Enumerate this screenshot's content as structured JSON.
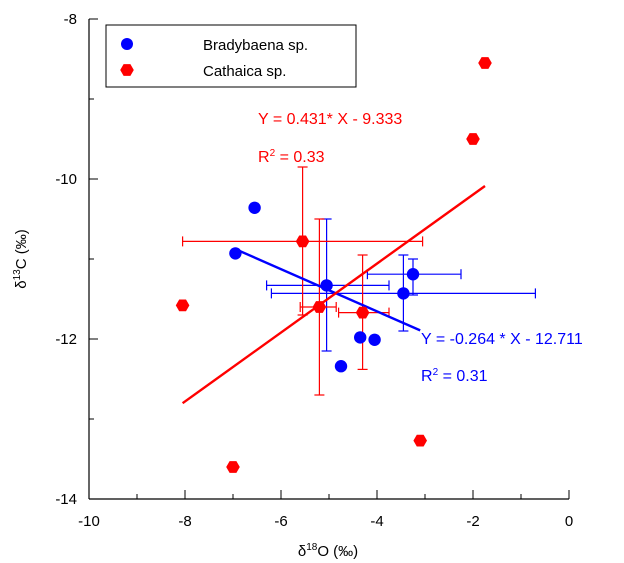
{
  "chart_data": {
    "type": "scatter",
    "xlabel": "δ18O (‰)",
    "ylabel": "δ13C (‰)",
    "xlim": [
      -10,
      0
    ],
    "ylim": [
      -14,
      -8
    ],
    "x_ticks": [
      -10,
      -8,
      -6,
      -4,
      -2,
      0
    ],
    "y_ticks": [
      -14,
      -12,
      -10,
      -8
    ],
    "x_ticks_labels": [
      "-10",
      "-8",
      "-6",
      "-4",
      "-2",
      "0"
    ],
    "y_ticks_labels": [
      "-14",
      "-12",
      "-10",
      "-8"
    ],
    "grid": false,
    "legend_position": "top-left",
    "series": [
      {
        "name": "Bradybaena sp.",
        "color": "#0000ff",
        "marker": "circle",
        "points": [
          {
            "x": -6.55,
            "y": -10.36
          },
          {
            "x": -6.95,
            "y": -10.93
          },
          {
            "x": -5.05,
            "y": -11.33
          },
          {
            "x": -3.25,
            "y": -11.19
          },
          {
            "x": -3.45,
            "y": -11.43
          },
          {
            "x": -4.35,
            "y": -11.98
          },
          {
            "x": -4.05,
            "y": -12.01
          },
          {
            "x": -4.75,
            "y": -12.34
          }
        ],
        "error_bars": [
          {
            "x": -5.05,
            "y": -11.33,
            "x_low": -6.3,
            "x_high": -3.75,
            "y_low": -12.15,
            "y_high": -10.5
          },
          {
            "x": -3.45,
            "y": -11.43,
            "x_low": -6.2,
            "x_high": -0.7,
            "y_low": -11.9,
            "y_high": -10.95
          },
          {
            "x": -3.25,
            "y": -11.19,
            "x_low": -4.2,
            "x_high": -2.25,
            "y_low": -11.45,
            "y_high": -11.0
          }
        ],
        "fit": {
          "slope": -0.264,
          "intercept": -12.711,
          "x_range": [
            -6.95,
            -3.1
          ]
        },
        "equation": "Y = -0.264 * X - 12.711",
        "r2_label": "R",
        "r2_value": " = 0.31"
      },
      {
        "name": "Cathaica sp.",
        "color": "#ff0000",
        "marker": "hexagon",
        "points": [
          {
            "x": -1.75,
            "y": -8.55
          },
          {
            "x": -2.0,
            "y": -9.5
          },
          {
            "x": -5.55,
            "y": -10.78
          },
          {
            "x": -8.05,
            "y": -11.58
          },
          {
            "x": -5.2,
            "y": -11.6
          },
          {
            "x": -4.3,
            "y": -11.67
          },
          {
            "x": -3.1,
            "y": -13.27
          },
          {
            "x": -7.0,
            "y": -13.6
          }
        ],
        "error_bars": [
          {
            "x": -5.55,
            "y": -10.78,
            "x_low": -8.05,
            "x_high": -3.05,
            "y_low": -11.7,
            "y_high": -9.85
          },
          {
            "x": -5.2,
            "y": -11.6,
            "x_low": -5.6,
            "x_high": -4.85,
            "y_low": -12.7,
            "y_high": -10.5
          },
          {
            "x": -4.3,
            "y": -11.67,
            "x_low": -4.8,
            "x_high": -3.75,
            "y_low": -12.38,
            "y_high": -10.95
          }
        ],
        "fit": {
          "slope": 0.431,
          "intercept": -9.333,
          "x_range": [
            -8.05,
            -1.75
          ]
        },
        "equation": "Y = 0.431* X - 9.333",
        "r2_label": "R",
        "r2_value": " = 0.33"
      }
    ]
  }
}
